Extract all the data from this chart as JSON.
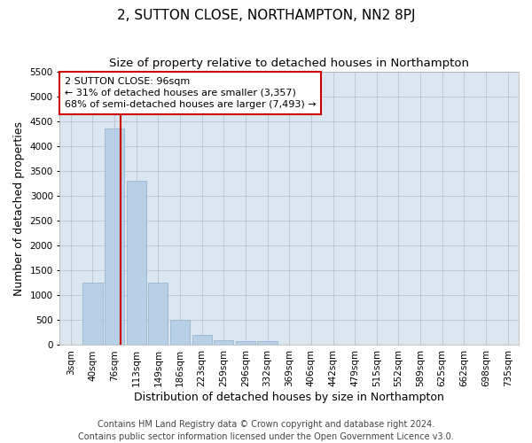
{
  "title": "2, SUTTON CLOSE, NORTHAMPTON, NN2 8PJ",
  "subtitle": "Size of property relative to detached houses in Northampton",
  "xlabel": "Distribution of detached houses by size in Northampton",
  "ylabel": "Number of detached properties",
  "categories": [
    "3sqm",
    "40sqm",
    "76sqm",
    "113sqm",
    "149sqm",
    "186sqm",
    "223sqm",
    "259sqm",
    "296sqm",
    "332sqm",
    "369sqm",
    "406sqm",
    "442sqm",
    "479sqm",
    "515sqm",
    "552sqm",
    "589sqm",
    "625sqm",
    "662sqm",
    "698sqm",
    "735sqm"
  ],
  "values": [
    0,
    1250,
    4350,
    3300,
    1250,
    500,
    200,
    100,
    75,
    75,
    0,
    0,
    0,
    0,
    0,
    0,
    0,
    0,
    0,
    0,
    0
  ],
  "bar_color": "#b8cfe8",
  "bar_edge_color": "#8faec8",
  "vline_x": 2.27,
  "vline_color": "#cc0000",
  "annotation_text": "2 SUTTON CLOSE: 96sqm\n← 31% of detached houses are smaller (3,357)\n68% of semi-detached houses are larger (7,493) →",
  "annotation_box_color": "#ffffff",
  "annotation_box_edge": "#cc0000",
  "ylim": [
    0,
    5500
  ],
  "yticks": [
    0,
    500,
    1000,
    1500,
    2000,
    2500,
    3000,
    3500,
    4000,
    4500,
    5000,
    5500
  ],
  "footer_line1": "Contains HM Land Registry data © Crown copyright and database right 2024.",
  "footer_line2": "Contains public sector information licensed under the Open Government Licence v3.0.",
  "background_color": "#ffffff",
  "plot_bg_color": "#dce6f0",
  "grid_color": "#b0bec8",
  "title_fontsize": 11,
  "subtitle_fontsize": 9.5,
  "tick_fontsize": 7.5,
  "ylabel_fontsize": 9,
  "xlabel_fontsize": 9,
  "footer_fontsize": 7,
  "annotation_fontsize": 8
}
